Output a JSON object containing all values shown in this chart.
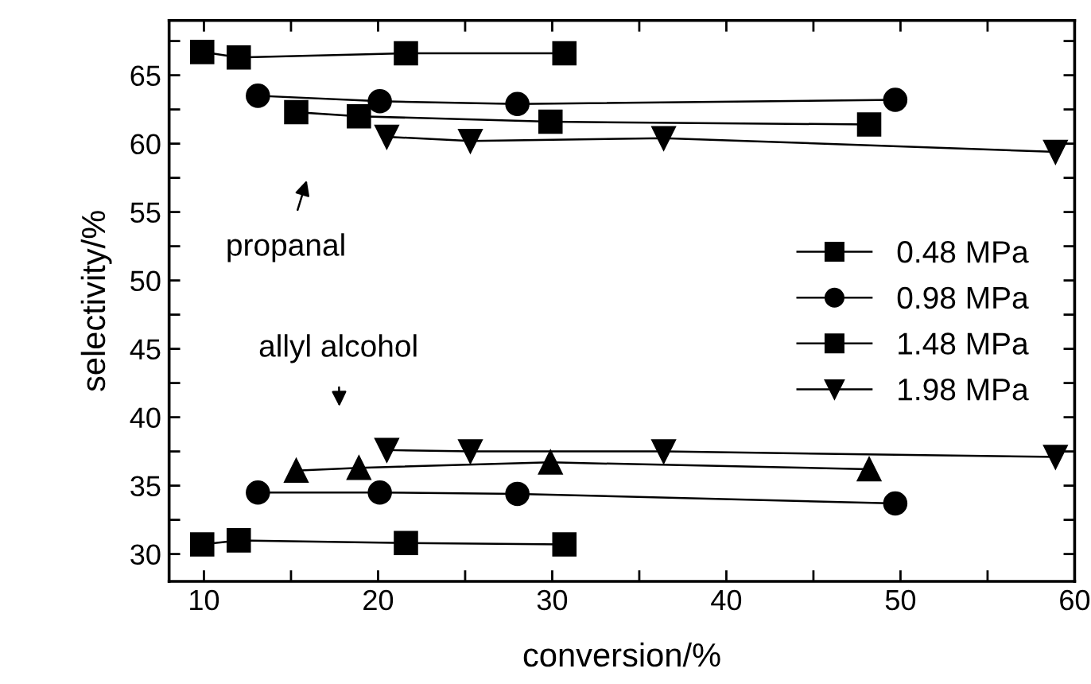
{
  "chart_data": {
    "type": "line",
    "xlabel": "conversion/%",
    "ylabel": "selectivity/%",
    "xlim": [
      8,
      60
    ],
    "xticks": [
      10,
      {
        "value": 15,
        "label": null
      },
      20,
      {
        "value": 25,
        "label": null
      },
      30,
      {
        "value": 35,
        "label": null
      },
      40,
      {
        "value": 45,
        "label": null
      },
      50,
      {
        "value": 55,
        "label": null
      },
      60
    ],
    "ylim": [
      28,
      69
    ],
    "yticks": [
      30,
      {
        "value": 32.5,
        "label": null
      },
      35,
      {
        "value": 37.5,
        "label": null
      },
      40,
      {
        "value": 42.5,
        "label": null
      },
      45,
      {
        "value": 47.5,
        "label": null
      },
      50,
      {
        "value": 52.5,
        "label": null
      },
      55,
      {
        "value": 57.5,
        "label": null
      },
      60,
      {
        "value": 62.5,
        "label": null
      },
      65,
      {
        "value": 67.5,
        "label": null
      }
    ],
    "grid": false,
    "legend": "right",
    "line_style": "solid",
    "series": [
      {
        "name": "0.48 MPa",
        "color": "#000000",
        "marker": "square",
        "x": [
          9.9,
          12.0,
          21.6,
          30.7
        ],
        "values": [
          66.7,
          66.3,
          66.6,
          66.6
        ]
      },
      {
        "name": "0.98 MPa",
        "color": "#000000",
        "marker": "circle",
        "x": [
          13.1,
          20.1,
          28.0,
          49.7
        ],
        "values": [
          63.5,
          63.1,
          62.9,
          63.2
        ]
      },
      {
        "name": "1.48 MPa",
        "color": "#000000",
        "marker": "square",
        "x": [
          15.3,
          18.9,
          29.9,
          48.2
        ],
        "values": [
          62.3,
          62.0,
          61.6,
          61.4
        ]
      },
      {
        "name": "1.98 MPa",
        "color": "#000000",
        "marker": "triangle_down",
        "x": [
          20.5,
          25.3,
          36.4,
          58.9
        ],
        "values": [
          60.5,
          60.2,
          60.4,
          59.4
        ]
      },
      {
        "color": "#000000",
        "marker": "square",
        "x": [
          9.9,
          12.0,
          21.6,
          30.7
        ],
        "values": [
          30.7,
          31.0,
          30.8,
          30.7
        ]
      },
      {
        "color": "#000000",
        "marker": "circle",
        "x": [
          13.1,
          20.1,
          28.0,
          49.7
        ],
        "values": [
          34.5,
          34.5,
          34.4,
          33.7
        ]
      },
      {
        "color": "#000000",
        "marker": "triangle",
        "x": [
          15.3,
          18.9,
          29.9,
          48.2
        ],
        "values": [
          36.1,
          36.3,
          36.7,
          36.2
        ]
      },
      {
        "color": "#000000",
        "marker": "triangle_down",
        "x": [
          20.5,
          25.3,
          36.4,
          58.9
        ],
        "values": [
          37.6,
          37.5,
          37.5,
          37.1
        ]
      }
    ],
    "annotations": [
      "propanal",
      "allyl alcohol"
    ]
  }
}
